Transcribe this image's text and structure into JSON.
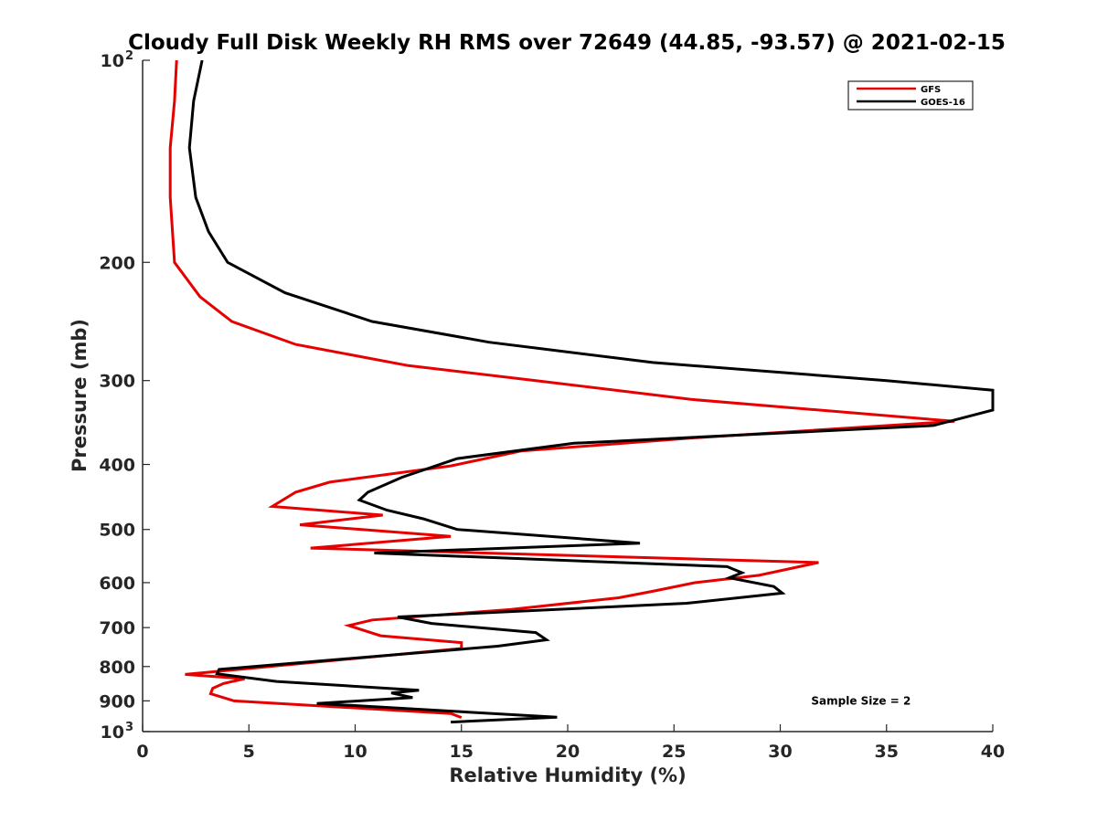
{
  "chart_data": {
    "type": "line",
    "title": "Cloudy Full Disk Weekly RH RMS over 72649 (44.85, -93.57) @ 2021-02-15",
    "xlabel": "Relative Humidity (%)",
    "ylabel": "Pressure (mb)",
    "xlim": [
      0,
      40
    ],
    "ylim": [
      100,
      1000
    ],
    "yscale": "log",
    "y_reversed": true,
    "grid": false,
    "legend_position": "top-right",
    "x_ticks": [
      {
        "value": 0,
        "label": "0"
      },
      {
        "value": 5,
        "label": "5"
      },
      {
        "value": 10,
        "label": "10"
      },
      {
        "value": 15,
        "label": "15"
      },
      {
        "value": 20,
        "label": "20"
      },
      {
        "value": 25,
        "label": "25"
      },
      {
        "value": 30,
        "label": "30"
      },
      {
        "value": 35,
        "label": "35"
      },
      {
        "value": 40,
        "label": "40"
      }
    ],
    "y_ticks": [
      {
        "value": 100,
        "base": "10",
        "exp": "2"
      },
      {
        "value": 200,
        "label": "200"
      },
      {
        "value": 300,
        "label": "300"
      },
      {
        "value": 400,
        "label": "400"
      },
      {
        "value": 500,
        "label": "500"
      },
      {
        "value": 600,
        "label": "600"
      },
      {
        "value": 700,
        "label": "700"
      },
      {
        "value": 800,
        "label": "800"
      },
      {
        "value": 900,
        "label": "900"
      },
      {
        "value": 1000,
        "base": "10",
        "exp": "3"
      }
    ],
    "series": [
      {
        "name": "GFS",
        "color": "#e60000",
        "points": [
          [
            1.6,
            100
          ],
          [
            1.5,
            115
          ],
          [
            1.3,
            135
          ],
          [
            1.3,
            160
          ],
          [
            1.5,
            200
          ],
          [
            2.7,
            225
          ],
          [
            4.2,
            245
          ],
          [
            7.2,
            265
          ],
          [
            12.5,
            285
          ],
          [
            18.5,
            300
          ],
          [
            25.8,
            320
          ],
          [
            38.2,
            345
          ],
          [
            26.0,
            365
          ],
          [
            17.8,
            382
          ],
          [
            14.5,
            402
          ],
          [
            8.8,
            425
          ],
          [
            7.2,
            440
          ],
          [
            6.1,
            462
          ],
          [
            11.3,
            476
          ],
          [
            7.4,
            492
          ],
          [
            14.5,
            512
          ],
          [
            7.9,
            533
          ],
          [
            31.8,
            560
          ],
          [
            29.0,
            585
          ],
          [
            26.0,
            600
          ],
          [
            24.0,
            618
          ],
          [
            22.4,
            632
          ],
          [
            17.3,
            658
          ],
          [
            10.8,
            682
          ],
          [
            9.7,
            695
          ],
          [
            11.2,
            720
          ],
          [
            15.0,
            737
          ],
          [
            15.0,
            752
          ],
          [
            2.0,
            822
          ],
          [
            4.8,
            834
          ],
          [
            3.8,
            848
          ],
          [
            3.3,
            862
          ],
          [
            3.2,
            878
          ],
          [
            4.3,
            900
          ],
          [
            14.5,
            940
          ],
          [
            15.0,
            953
          ]
        ]
      },
      {
        "name": "GOES-16",
        "color": "#000000",
        "points": [
          [
            2.8,
            100
          ],
          [
            2.4,
            115
          ],
          [
            2.2,
            135
          ],
          [
            2.5,
            160
          ],
          [
            3.1,
            180
          ],
          [
            4.0,
            200
          ],
          [
            6.7,
            222
          ],
          [
            10.8,
            245
          ],
          [
            16.3,
            263
          ],
          [
            24.0,
            282
          ],
          [
            35.0,
            300
          ],
          [
            40.0,
            310
          ],
          [
            40.0,
            332
          ],
          [
            37.2,
            350
          ],
          [
            20.3,
            372
          ],
          [
            14.8,
            392
          ],
          [
            12.2,
            418
          ],
          [
            10.6,
            440
          ],
          [
            10.2,
            452
          ],
          [
            11.5,
            468
          ],
          [
            13.2,
            482
          ],
          [
            14.8,
            500
          ],
          [
            23.4,
            524
          ],
          [
            10.9,
            542
          ],
          [
            27.5,
            568
          ],
          [
            28.2,
            580
          ],
          [
            27.6,
            590
          ],
          [
            29.7,
            608
          ],
          [
            30.1,
            622
          ],
          [
            25.6,
            644
          ],
          [
            12.0,
            675
          ],
          [
            13.6,
            690
          ],
          [
            18.5,
            712
          ],
          [
            19.0,
            730
          ],
          [
            16.7,
            746
          ],
          [
            3.6,
            808
          ],
          [
            3.5,
            820
          ],
          [
            6.3,
            842
          ],
          [
            13.0,
            868
          ],
          [
            11.7,
            876
          ],
          [
            12.7,
            890
          ],
          [
            8.2,
            908
          ],
          [
            19.5,
            952
          ],
          [
            14.5,
            968
          ]
        ]
      }
    ],
    "annotations": [
      {
        "text": "Sample Size = 2",
        "x": 33.8,
        "y": 900
      }
    ]
  }
}
